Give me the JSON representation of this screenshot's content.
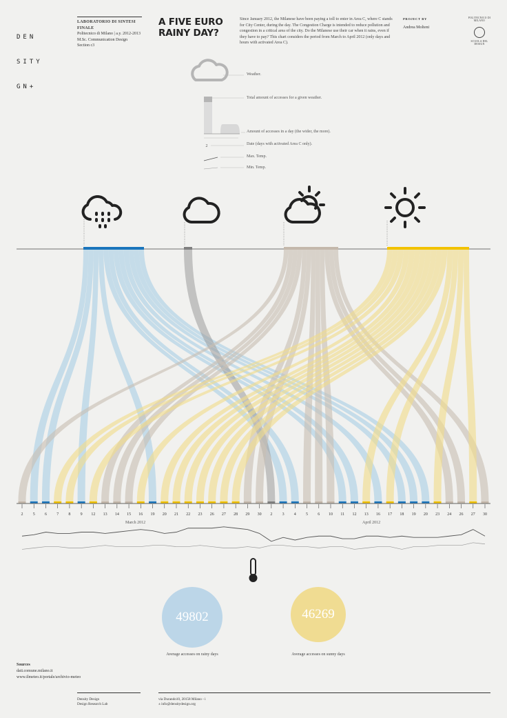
{
  "header": {
    "logo_lines": [
      "DEN",
      "SITY",
      "GN+"
    ],
    "course_title": "LABORATORIO DI SINTESI FINALE",
    "course_lines": [
      "Politecnico di Milano | a.y. 2012-2013",
      "M.Sc. Communication Design",
      "Section c3"
    ],
    "title_lines": [
      "A FIVE EURO",
      "RAINY DAY?"
    ],
    "intro": "Since January 2012, the Milanese have been paying a toll to enter in Area C, where C stands for City Center, during the day. The Congestion Charge is intended to reduce pollution and congestion in a critical area of the city. Do the Milanese use their car when it rains, even if they have to pay? This chart considers the period from March to April 2012 (only days and hours with activated Area C).",
    "project_label": "PROJECT BY",
    "author": "Andrea Molteni",
    "polimi_top": "POLITECNICO DI MILANO",
    "polimi_bottom": "SCUOLA DEL DESIGN"
  },
  "legend": {
    "weather": "Weather.",
    "total": "Total amount of accesses for a given weather.",
    "amount": "Amount of accesses in a day (the wider, the more).",
    "date_sample": "2",
    "date": "Date (days with activated Area C only).",
    "max_temp": "Max. Temp.",
    "min_temp": "Min. Temp."
  },
  "weather_types": [
    {
      "id": "rain",
      "icon": "rain-cloud-icon",
      "color": "#1b75bc"
    },
    {
      "id": "cloudy",
      "icon": "cloud-icon",
      "color": "#808080"
    },
    {
      "id": "partly",
      "icon": "sun-behind-cloud-icon",
      "color": "#c4b8ab"
    },
    {
      "id": "sunny",
      "icon": "sun-icon",
      "color": "#f2c200"
    }
  ],
  "colors": {
    "rain": "#a9cfe5",
    "cloudy": "#9a9a9a",
    "partly": "#c8bfb3",
    "sunny": "#f0db8a"
  },
  "months": [
    "March 2012",
    "April 2012"
  ],
  "chart_data": {
    "type": "flow",
    "x": [
      "2",
      "5",
      "6",
      "7",
      "8",
      "9",
      "12",
      "13",
      "14",
      "15",
      "16",
      "19",
      "20",
      "21",
      "22",
      "23",
      "26",
      "27",
      "28",
      "29",
      "30",
      "2",
      "3",
      "4",
      "5",
      "6",
      "10",
      "11",
      "12",
      "13",
      "16",
      "17",
      "18",
      "19",
      "20",
      "23",
      "24",
      "26",
      "27",
      "30"
    ],
    "month_of_day": [
      "March 2012",
      "March 2012",
      "March 2012",
      "March 2012",
      "March 2012",
      "March 2012",
      "March 2012",
      "March 2012",
      "March 2012",
      "March 2012",
      "March 2012",
      "March 2012",
      "March 2012",
      "March 2012",
      "March 2012",
      "March 2012",
      "March 2012",
      "March 2012",
      "March 2012",
      "March 2012",
      "March 2012",
      "April 2012",
      "April 2012",
      "April 2012",
      "April 2012",
      "April 2012",
      "April 2012",
      "April 2012",
      "April 2012",
      "April 2012",
      "April 2012",
      "April 2012",
      "April 2012",
      "April 2012",
      "April 2012",
      "April 2012",
      "April 2012",
      "April 2012",
      "April 2012",
      "April 2012"
    ],
    "weather": [
      "partly",
      "rain",
      "rain",
      "sunny",
      "sunny",
      "rain",
      "sunny",
      "partly",
      "partly",
      "partly",
      "sunny",
      "rain",
      "sunny",
      "sunny",
      "sunny",
      "sunny",
      "sunny",
      "sunny",
      "sunny",
      "partly",
      "partly",
      "cloudy",
      "rain",
      "rain",
      "partly",
      "partly",
      "partly",
      "rain",
      "rain",
      "sunny",
      "rain",
      "sunny",
      "rain",
      "rain",
      "rain",
      "sunny",
      "partly",
      "partly",
      "sunny",
      "partly"
    ],
    "max_temp": [
      15,
      16,
      18,
      17,
      17,
      18,
      18,
      17,
      18,
      19,
      20,
      19,
      17,
      18,
      21,
      21,
      21,
      22,
      21,
      20,
      17,
      11,
      14,
      12,
      14,
      15,
      15,
      13,
      13,
      15,
      15,
      14,
      15,
      14,
      14,
      14,
      15,
      16,
      20,
      15
    ],
    "min_temp": [
      5,
      6,
      7,
      7,
      6,
      6,
      7,
      8,
      7,
      7,
      7,
      8,
      8,
      7,
      7,
      8,
      7,
      6,
      6,
      7,
      6,
      8,
      8,
      7,
      7,
      6,
      7,
      7,
      5,
      6,
      7,
      7,
      5,
      7,
      7,
      8,
      8,
      8,
      10,
      9
    ],
    "averages": [
      {
        "value": "49802",
        "label": "Average accesses on rainy days",
        "color": "#bcd6e8"
      },
      {
        "value": "46269",
        "label": "Average accesses on sunny days",
        "color": "#f0dc92"
      }
    ]
  },
  "sources": {
    "heading": "Sources",
    "lines": [
      "dati.comune.milano.it",
      "www.ilmeteo.it/portale/archivio-meteo"
    ]
  },
  "footer": {
    "org_lines": [
      "Density Design",
      "Design Research Lab"
    ],
    "address_lines": [
      "via Durando10, 20158 Milano - i",
      "± info@densitydesign.org"
    ]
  }
}
